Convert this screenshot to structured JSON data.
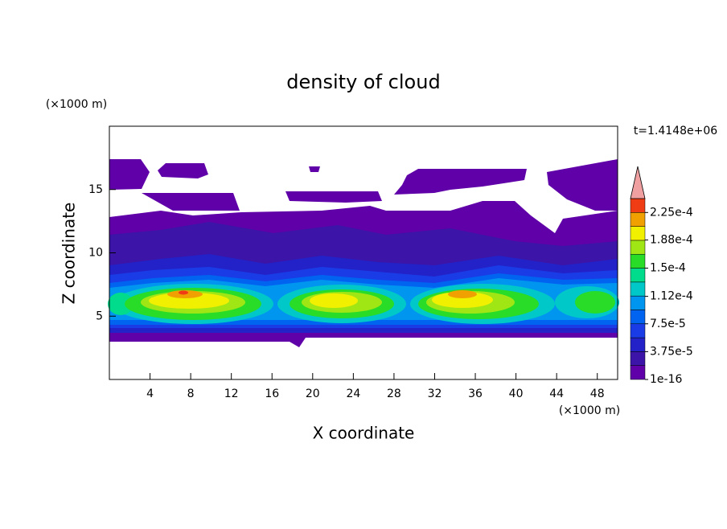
{
  "chart_data": {
    "type": "contour",
    "title": "density of cloud",
    "x_label": "X coordinate",
    "y_label": "Z coordinate",
    "x_unit": "(×1000 m)",
    "y_unit": "(×1000 m)",
    "time_label": "t=1.4148e+06",
    "xlim": [
      0,
      50
    ],
    "xticks": [
      4,
      8,
      12,
      16,
      20,
      24,
      28,
      32,
      36,
      40,
      44,
      48
    ],
    "ylim": [
      0,
      20
    ],
    "yticks": [
      5,
      10,
      15
    ],
    "colorbar": {
      "lim": [
        1e-16,
        0.00024375
      ],
      "ticks": [
        1e-16,
        {
          "value": 3.75e-05,
          "label": "3.75e-5"
        },
        {
          "value": 7.5e-05,
          "label": "7.5e-5"
        },
        {
          "value": 0.000112,
          "label": "1.12e-4"
        },
        {
          "value": 0.00015,
          "label": "1.5e-4"
        },
        {
          "value": 0.000188,
          "label": "1.88e-4"
        },
        {
          "value": 0.000225,
          "label": "2.25e-4"
        }
      ],
      "colors": [
        "#5f00a8",
        "#3c14a8",
        "#2222c8",
        "#1a3ce6",
        "#0064f0",
        "#0096f0",
        "#00c8c8",
        "#00dc8c",
        "#28dc28",
        "#a0e614",
        "#f0f000",
        "#f0a000",
        "#f03c14"
      ],
      "extend_color": "#f0a0a0"
    }
  }
}
